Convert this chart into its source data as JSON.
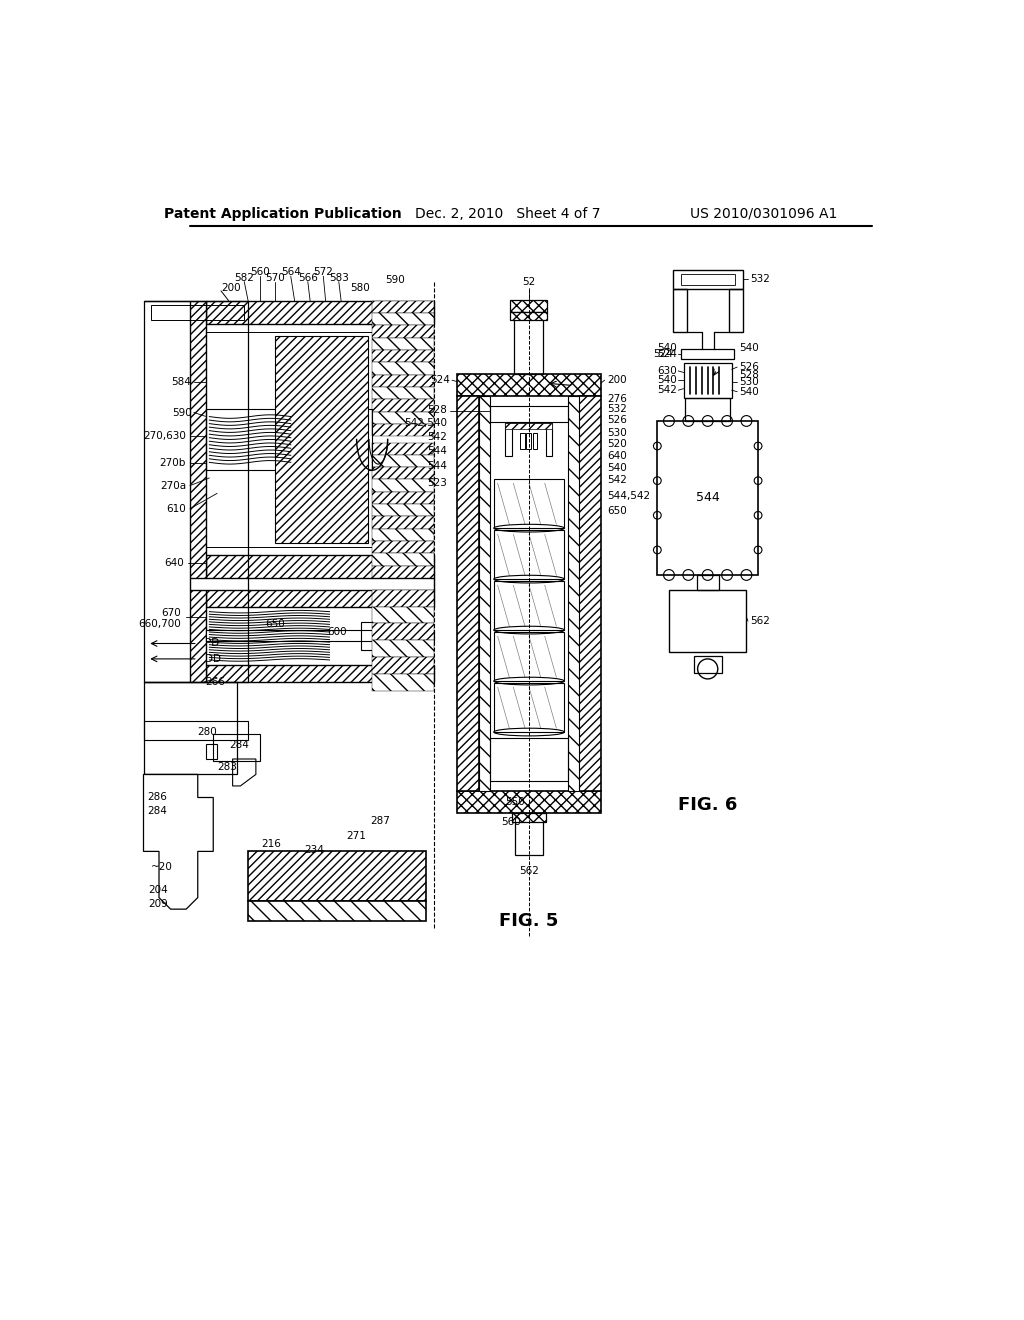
{
  "background_color": "#ffffff",
  "header_left": "Patent Application Publication",
  "header_middle": "Dec. 2, 2010   Sheet 4 of 7",
  "header_right": "US 2010/0301096 A1",
  "fig5_label": "FIG. 5",
  "fig6_label": "FIG. 6"
}
